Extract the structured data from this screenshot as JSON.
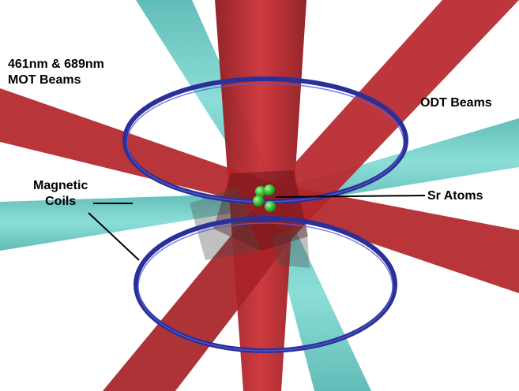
{
  "labels": {
    "mot_line1": "461nm & 689nm",
    "mot_line2": "MOT Beams",
    "odt": "ODT Beams",
    "coils_line1": "Magnetic",
    "coils_line2": "Coils",
    "atoms": "Sr Atoms"
  },
  "colors": {
    "mot_beam": "#c0282d",
    "odt_beam": "#6fcfc9",
    "coil": "#2b2f9a",
    "atoms": "#3cc93c"
  },
  "icons": [
    "mot-beam",
    "odt-beam",
    "magnetic-coil",
    "sr-atom"
  ]
}
